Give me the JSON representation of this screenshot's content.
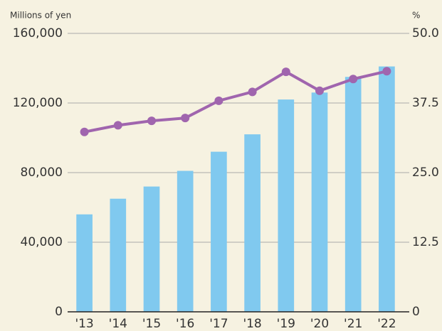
{
  "chart_data": {
    "type": "bar",
    "y_label": "Millions of yen",
    "y2_label": "%",
    "categories": [
      "'13",
      "'14",
      "'15",
      "'16",
      "'17",
      "'18",
      "'19",
      "'20",
      "'21",
      "'22"
    ],
    "series": [
      {
        "type": "bar",
        "color": "#80c9ef",
        "values": [
          56000,
          65000,
          72000,
          81000,
          92000,
          102000,
          122000,
          126000,
          135000,
          141000
        ]
      },
      {
        "type": "line",
        "axis": "y2",
        "color": "#a065ae",
        "values": [
          32.3,
          33.5,
          34.3,
          34.8,
          37.9,
          39.5,
          43.1,
          39.7,
          41.8,
          43.2
        ]
      }
    ],
    "ylim": [
      0,
      160000
    ],
    "yticks": [
      0,
      {
        "value": 40000,
        "label": "40,000"
      },
      {
        "value": 80000,
        "label": "80,000"
      },
      {
        "value": 120000,
        "label": "120,000"
      },
      {
        "value": 160000,
        "label": "160,000"
      }
    ],
    "y2lim": [
      0,
      50
    ],
    "y2ticks": [
      0,
      12.5,
      {
        "value": 25,
        "label": "25.0"
      },
      37.5,
      {
        "value": 50,
        "label": "50.0"
      }
    ],
    "grid": true
  }
}
